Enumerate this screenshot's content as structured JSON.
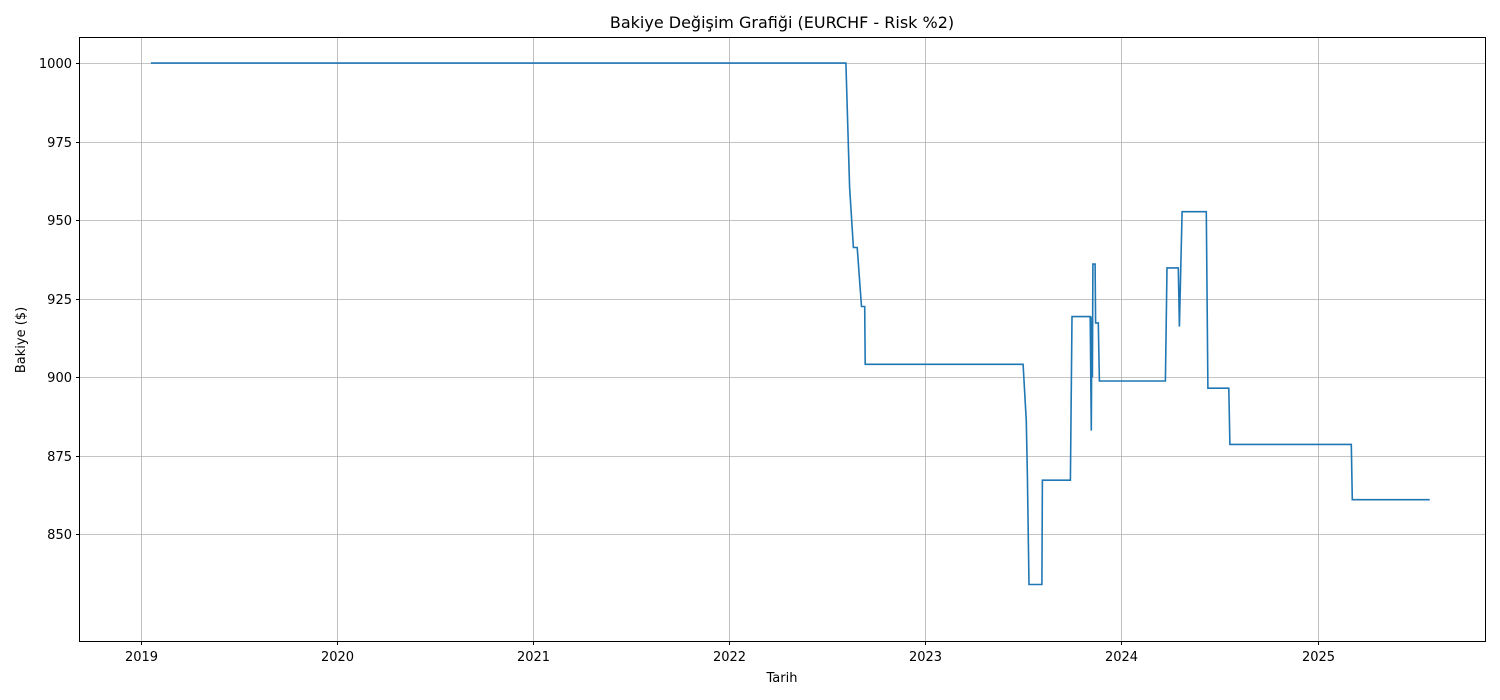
{
  "chart_data": {
    "type": "line",
    "title": "Bakiye Değişim Grafiği (EURCHF - Risk %2)",
    "xlabel": "Tarih",
    "ylabel": "Bakiye ($)",
    "grid": true,
    "xlim": [
      "2018-09-10",
      "2025-11-08"
    ],
    "ylim": [
      816,
      1008
    ],
    "x_ticks": [
      "2019",
      "2020",
      "2021",
      "2022",
      "2023",
      "2024",
      "2025"
    ],
    "y_ticks": [
      850,
      875,
      900,
      925,
      950,
      975,
      1000
    ],
    "series_color": "#1f77b4",
    "series": [
      {
        "x": [
          "2019-01-20",
          "2022-08-06",
          "2022-08-13",
          "2022-08-20",
          "2022-08-27",
          "2022-09-04",
          "2022-09-10",
          "2022-09-11",
          "2022-09-14",
          "2023-07-02",
          "2023-07-08",
          "2023-07-10",
          "2023-07-13",
          "2023-08-06",
          "2023-08-07",
          "2023-09-28",
          "2023-10-01",
          "2023-11-04",
          "2023-11-06",
          "2023-11-07",
          "2023-11-08",
          "2023-11-09",
          "2023-11-13",
          "2023-11-14",
          "2023-11-19",
          "2023-11-21",
          "2023-11-28",
          "2023-11-30",
          "2024-03-23",
          "2024-03-26",
          "2024-04-16",
          "2024-04-18",
          "2024-04-23",
          "2024-06-07",
          "2024-06-10",
          "2024-07-19",
          "2024-07-21",
          "2025-03-04",
          "2025-03-06",
          "2025-07-28"
        ],
        "y": [
          1000,
          1000,
          960.5,
          941.3,
          941.3,
          922.5,
          922.5,
          904.1,
          904.1,
          904.1,
          886.0,
          868.3,
          834.0,
          834.0,
          867.2,
          867.2,
          919.3,
          919.3,
          883.0,
          919.3,
          900.0,
          936.0,
          936.0,
          917.3,
          917.3,
          898.8,
          898.8,
          898.8,
          898.8,
          934.8,
          934.8,
          916.1,
          952.7,
          952.7,
          896.5,
          896.5,
          878.6,
          878.6,
          861.0,
          861.0
        ]
      }
    ]
  }
}
